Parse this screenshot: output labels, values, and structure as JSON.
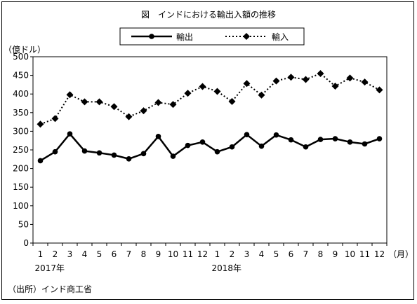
{
  "chart_data": {
    "type": "line",
    "title": "図　インドにおける輸出入額の推移",
    "ylabel": "（億ドル）",
    "xlabel_unit": "（月）",
    "ylim": [
      0,
      500
    ],
    "yticks": [
      0,
      50,
      100,
      150,
      200,
      250,
      300,
      350,
      400,
      450,
      500
    ],
    "categories": [
      "1",
      "2",
      "3",
      "4",
      "5",
      "6",
      "7",
      "8",
      "9",
      "10",
      "11",
      "12",
      "1",
      "2",
      "3",
      "4",
      "5",
      "6",
      "7",
      "8",
      "9",
      "10",
      "11",
      "12"
    ],
    "year_labels": [
      {
        "label": "2017年",
        "index": 0
      },
      {
        "label": "2018年",
        "index": 12
      }
    ],
    "legend_placement": "top-center",
    "grid": false,
    "series": [
      {
        "name": "輸出",
        "style": "solid",
        "marker": "circle",
        "color": "#000000",
        "values": [
          221,
          245,
          293,
          247,
          242,
          236,
          226,
          240,
          286,
          233,
          262,
          271,
          245,
          258,
          291,
          260,
          290,
          277,
          258,
          278,
          280,
          271,
          266,
          280
        ]
      },
      {
        "name": "輸入",
        "style": "dotted",
        "marker": "diamond",
        "color": "#000000",
        "values": [
          319,
          334,
          398,
          379,
          379,
          366,
          339,
          355,
          377,
          372,
          402,
          420,
          407,
          380,
          428,
          397,
          435,
          445,
          439,
          455,
          421,
          443,
          432,
          411
        ]
      }
    ]
  },
  "source_note": "（出所）インド商工省"
}
